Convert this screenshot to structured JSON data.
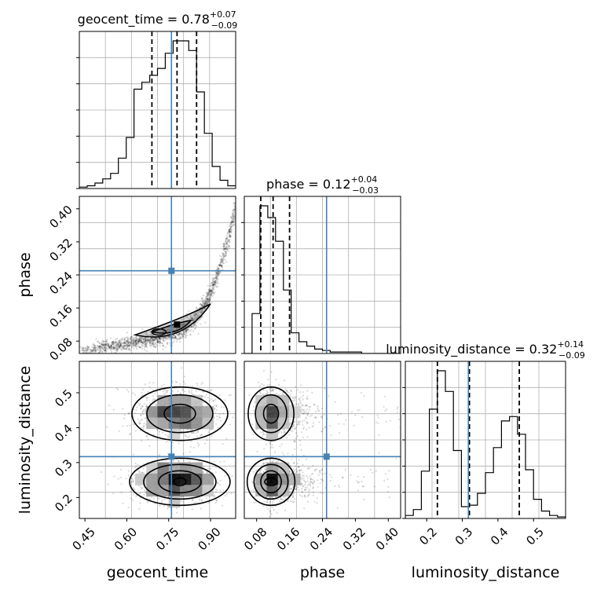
{
  "chart_data": {
    "type": "corner",
    "grid": true,
    "colors": {
      "truth": "#4682b4",
      "hist": "#000000",
      "grid": "#b0b0b0",
      "samples": "#000000"
    },
    "parameters": [
      {
        "name": "geocent_time",
        "label": "geocent_time",
        "range": [
          0.43,
          0.99
        ],
        "ticks": [
          0.45,
          0.6,
          0.75,
          0.9
        ],
        "tick_labels": [
          "0.45",
          "0.60",
          "0.75",
          "0.90"
        ],
        "truth": 0.76,
        "quantiles": [
          0.69,
          0.78,
          0.85
        ],
        "title_value": "0.78",
        "title_plus": "+0.07",
        "title_minus": "−0.09"
      },
      {
        "name": "phase",
        "label": "phase",
        "range": [
          0.05,
          0.43
        ],
        "ticks": [
          0.08,
          0.16,
          0.24,
          0.32,
          0.4
        ],
        "tick_labels": [
          "0.08",
          "0.16",
          "0.24",
          "0.32",
          "0.40"
        ],
        "truth": 0.25,
        "quantiles": [
          0.09,
          0.12,
          0.16
        ],
        "title_value": "0.12",
        "title_plus": "+0.04",
        "title_minus": "−0.03"
      },
      {
        "name": "luminosity_distance",
        "label": "luminosity_distance",
        "range": [
          0.14,
          0.59
        ],
        "ticks": [
          0.2,
          0.3,
          0.4,
          0.5
        ],
        "tick_labels": [
          "0.2",
          "0.3",
          "0.4",
          "0.5"
        ],
        "truth": 0.317,
        "quantiles": [
          0.23,
          0.32,
          0.46
        ],
        "title_value": "0.32",
        "title_plus": "+0.14",
        "title_minus": "−0.09"
      }
    ],
    "histograms": [
      {
        "param": "geocent_time",
        "bin_edges": [
          0.43,
          0.458,
          0.486,
          0.514,
          0.542,
          0.57,
          0.598,
          0.626,
          0.654,
          0.682,
          0.71,
          0.738,
          0.766,
          0.794,
          0.822,
          0.85,
          0.878,
          0.906,
          0.934,
          0.962,
          0.99
        ],
        "counts": [
          1,
          2,
          4,
          7,
          11,
          22,
          37,
          72,
          77,
          82,
          87,
          98,
          107,
          107,
          100,
          70,
          40,
          16,
          6,
          2
        ]
      },
      {
        "param": "phase",
        "bin_edges": [
          0.05,
          0.069,
          0.088,
          0.107,
          0.126,
          0.145,
          0.164,
          0.183,
          0.202,
          0.221,
          0.24,
          0.259,
          0.278,
          0.297,
          0.316,
          0.335,
          0.354,
          0.373,
          0.392,
          0.411,
          0.43
        ],
        "counts": [
          0,
          27,
          100,
          92,
          76,
          43,
          14,
          8,
          5,
          3,
          2,
          1,
          1,
          1,
          1,
          0,
          0,
          0,
          0,
          0
        ]
      },
      {
        "param": "luminosity_distance",
        "bin_edges": [
          0.14,
          0.1625,
          0.185,
          0.2075,
          0.23,
          0.2525,
          0.275,
          0.2975,
          0.32,
          0.3425,
          0.365,
          0.3875,
          0.41,
          0.4325,
          0.455,
          0.4775,
          0.5,
          0.5225,
          0.545,
          0.5675,
          0.59
        ],
        "counts": [
          2,
          6,
          32,
          74,
          100,
          86,
          46,
          8,
          9,
          17,
          31,
          48,
          66,
          69,
          57,
          33,
          13,
          5,
          2,
          1
        ]
      }
    ],
    "panels_2d": [
      {
        "x": "geocent_time",
        "y": "phase",
        "truth": [
          0.76,
          0.25
        ],
        "samples": "curved ridge: phase rising steeply with geocent_time",
        "contour_center": [
          0.78,
          0.12
        ]
      },
      {
        "x": "geocent_time",
        "y": "luminosity_distance",
        "truth": [
          0.76,
          0.317
        ],
        "modes": [
          [
            0.78,
            0.44
          ],
          [
            0.78,
            0.245
          ]
        ]
      },
      {
        "x": "phase",
        "y": "luminosity_distance",
        "truth": [
          0.25,
          0.317
        ],
        "modes": [
          [
            0.12,
            0.44
          ],
          [
            0.12,
            0.245
          ]
        ]
      }
    ]
  }
}
